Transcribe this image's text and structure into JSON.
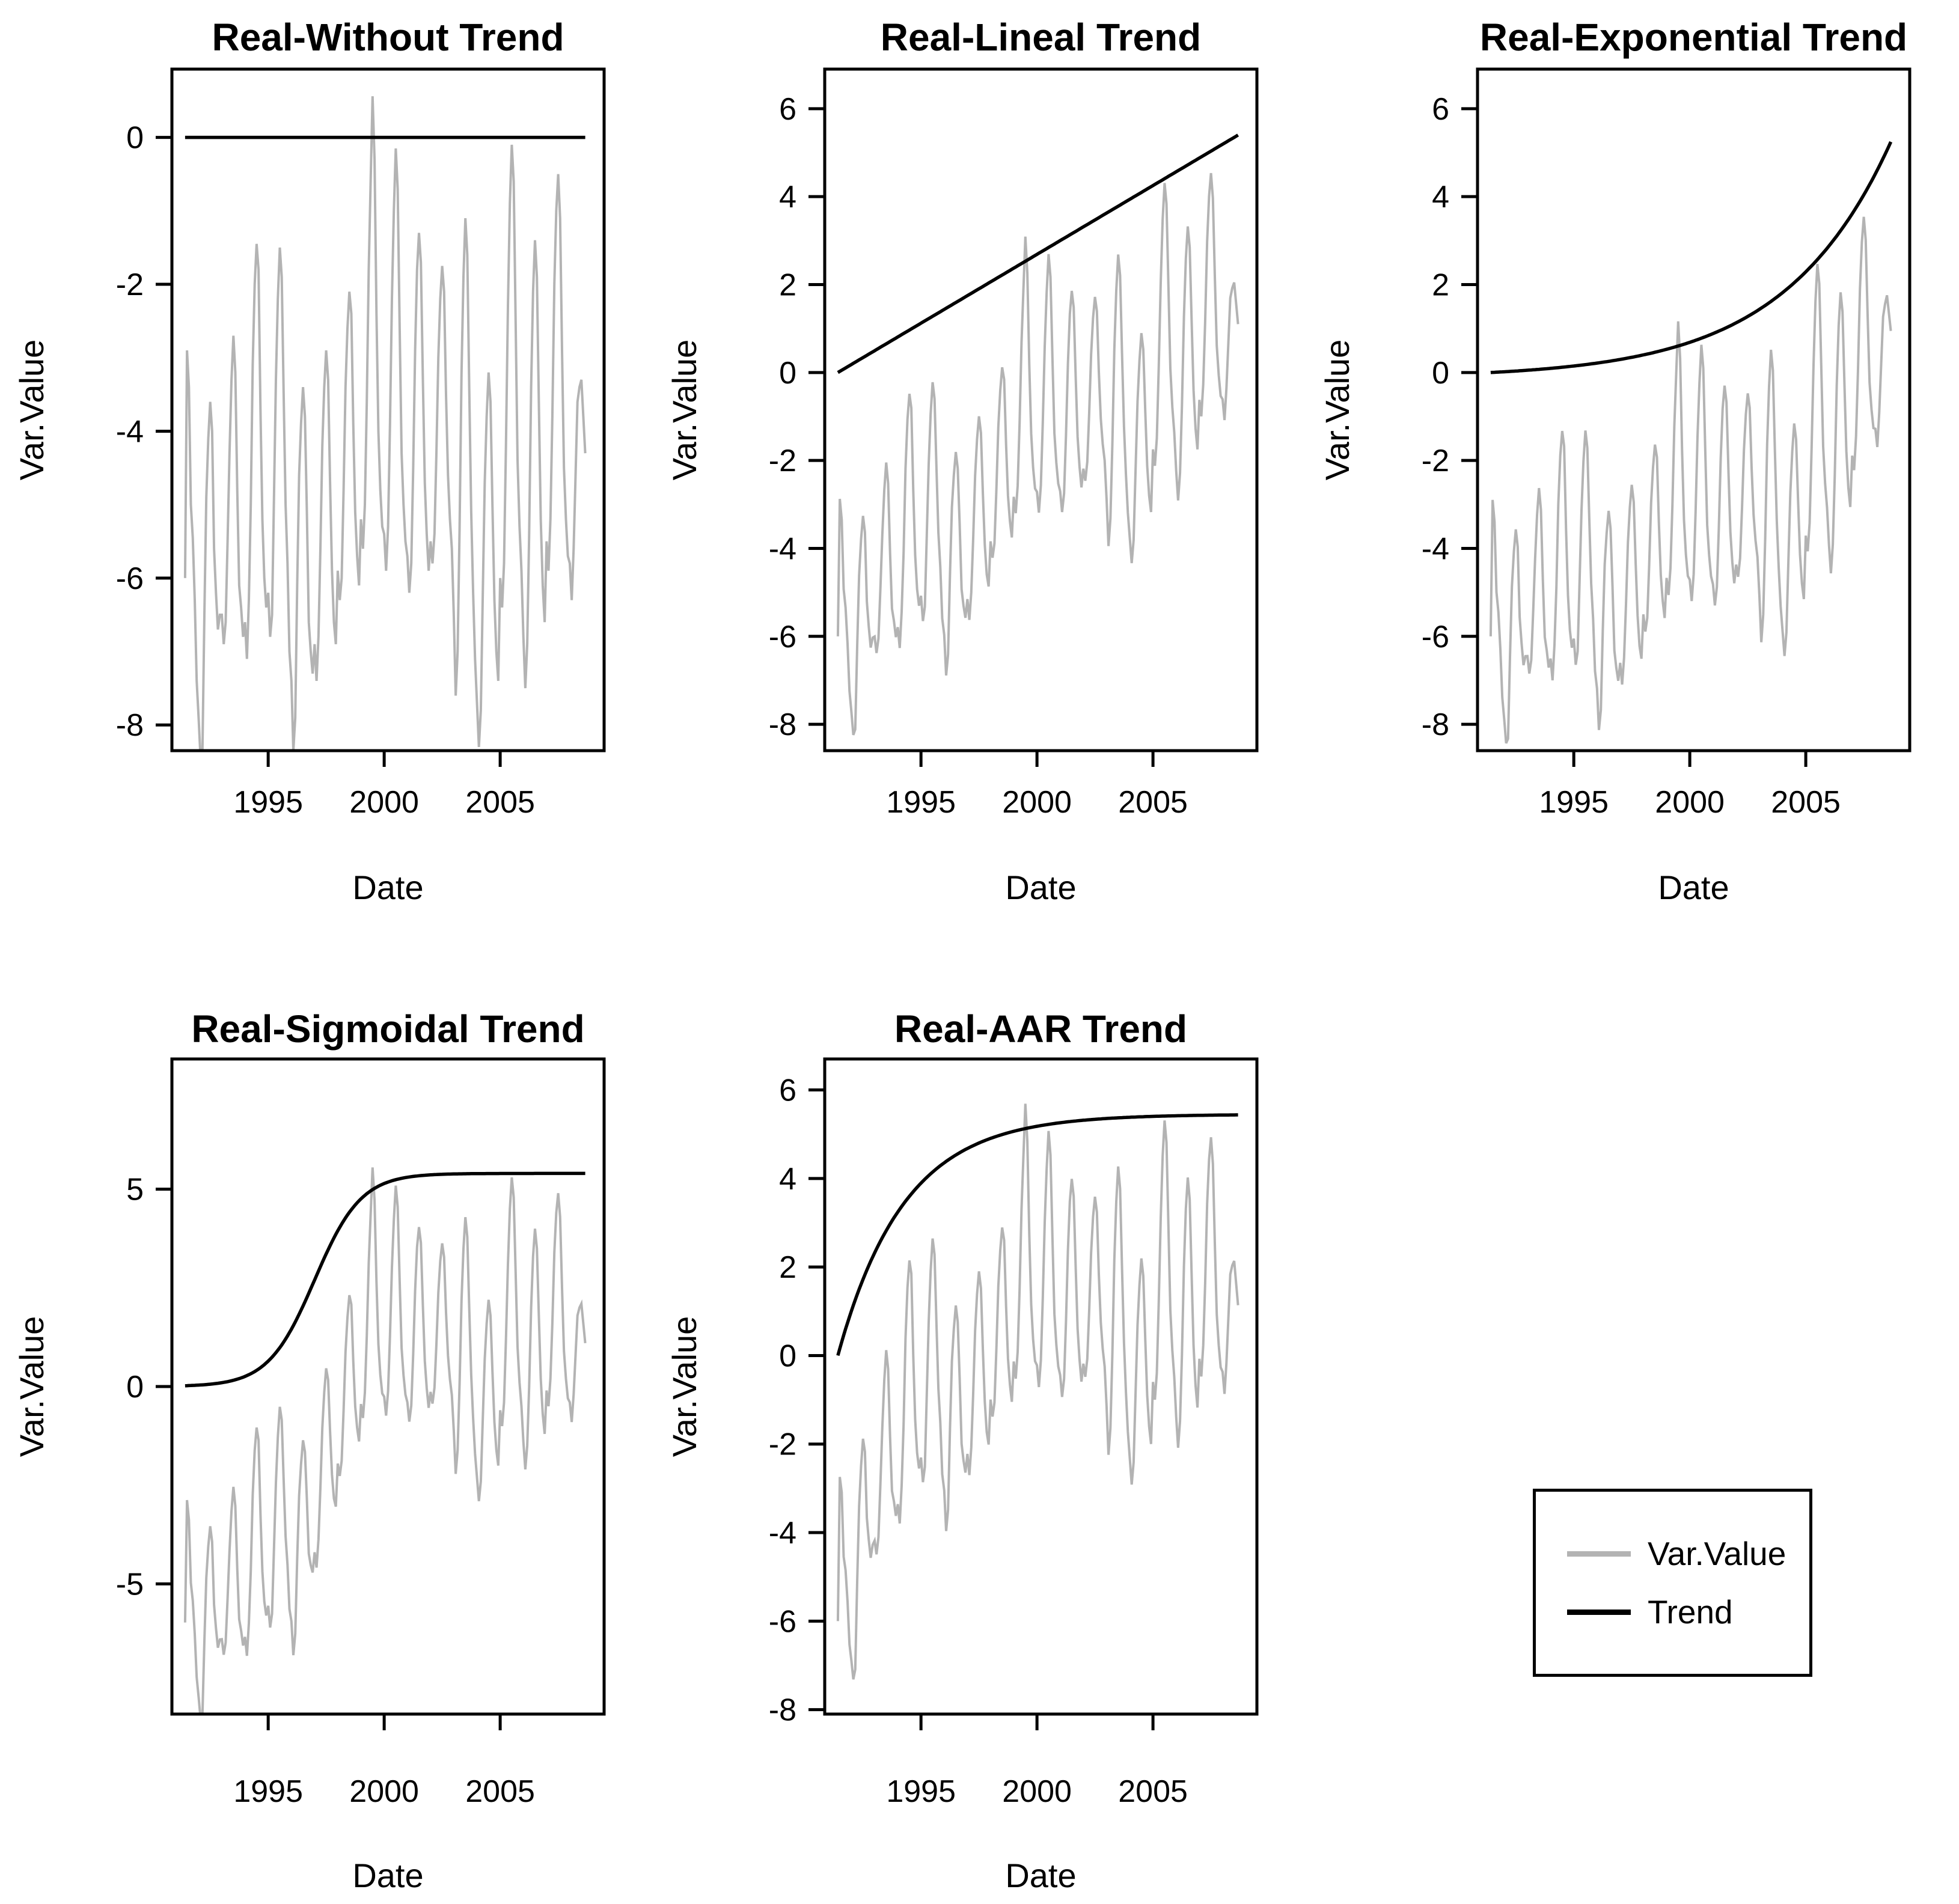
{
  "figure": {
    "background_color": "#ffffff",
    "text_color": "#000000"
  },
  "legend": {
    "entries": [
      {
        "label": "Var.Value",
        "color": "#b3b3b3"
      },
      {
        "label": "Trend",
        "color": "#000000"
      }
    ]
  },
  "chart_data": {
    "type": "line",
    "colors": {
      "series": "#b3b3b3",
      "trend": "#000000",
      "frame": "#000000",
      "text": "#000000"
    },
    "x": {
      "label": "Date",
      "start_year": 1991.4167,
      "step_years": 0.0833333,
      "n": 208,
      "xlim": [
        1990.85,
        2009.48
      ],
      "xticks": [
        1995,
        2000,
        2005
      ],
      "xtick_labels": [
        "1995",
        "2000",
        "2005"
      ]
    },
    "ylabel": "Var.Value",
    "base_series_name": "Var.Value",
    "base_values": [
      -6.0,
      -2.9,
      -3.4,
      -5.0,
      -5.45,
      -6.3,
      -7.4,
      -7.9,
      -8.45,
      -8.35,
      -6.5,
      -4.9,
      -4.1,
      -3.6,
      -4.0,
      -5.6,
      -6.2,
      -6.7,
      -6.5,
      -6.5,
      -6.9,
      -6.6,
      -5.5,
      -4.3,
      -3.3,
      -2.7,
      -3.2,
      -4.8,
      -6.1,
      -6.4,
      -6.8,
      -6.6,
      -7.1,
      -6.3,
      -5.0,
      -3.1,
      -2.0,
      -1.45,
      -1.8,
      -3.7,
      -5.2,
      -6.0,
      -6.4,
      -6.2,
      -6.8,
      -6.5,
      -4.9,
      -3.3,
      -2.2,
      -1.5,
      -1.9,
      -3.5,
      -5.0,
      -5.8,
      -7.0,
      -7.4,
      -8.35,
      -7.9,
      -6.1,
      -4.6,
      -3.9,
      -3.4,
      -3.8,
      -5.1,
      -6.6,
      -7.0,
      -7.3,
      -6.9,
      -7.4,
      -6.8,
      -5.6,
      -4.2,
      -3.4,
      -2.9,
      -3.3,
      -4.7,
      -5.9,
      -6.6,
      -6.9,
      -5.9,
      -6.3,
      -6.0,
      -4.8,
      -3.4,
      -2.6,
      -2.1,
      -2.4,
      -3.9,
      -5.1,
      -5.7,
      -6.1,
      -5.2,
      -5.6,
      -5.0,
      -3.6,
      -1.8,
      -0.6,
      0.56,
      -0.3,
      -2.4,
      -4.0,
      -4.8,
      -5.3,
      -5.4,
      -5.9,
      -5.3,
      -3.9,
      -2.2,
      -1.0,
      -0.15,
      -0.7,
      -2.6,
      -4.3,
      -5.0,
      -5.5,
      -5.7,
      -6.2,
      -5.8,
      -4.5,
      -2.9,
      -1.8,
      -1.3,
      -1.7,
      -3.3,
      -4.7,
      -5.4,
      -5.9,
      -5.5,
      -5.8,
      -5.4,
      -4.3,
      -3.0,
      -2.2,
      -1.75,
      -2.1,
      -3.5,
      -4.6,
      -5.2,
      -5.6,
      -6.5,
      -7.6,
      -7.0,
      -5.3,
      -3.2,
      -1.9,
      -1.1,
      -1.6,
      -3.4,
      -5.1,
      -6.2,
      -7.1,
      -7.7,
      -8.3,
      -7.8,
      -6.2,
      -4.7,
      -3.8,
      -3.2,
      -3.6,
      -5.0,
      -6.3,
      -7.0,
      -7.4,
      -6.0,
      -6.4,
      -5.8,
      -4.2,
      -2.3,
      -0.9,
      -0.1,
      -0.6,
      -2.5,
      -4.4,
      -5.3,
      -5.9,
      -6.8,
      -7.5,
      -6.9,
      -5.4,
      -3.4,
      -2.1,
      -1.4,
      -1.9,
      -3.6,
      -5.2,
      -6.1,
      -6.6,
      -5.5,
      -5.9,
      -5.2,
      -3.8,
      -2.0,
      -1.0,
      -0.5,
      -1.1,
      -2.9,
      -4.5,
      -5.2,
      -5.7,
      -5.8,
      -6.3,
      -5.6,
      -4.6,
      -3.6,
      -3.4,
      -3.3,
      -3.8,
      -4.3
    ],
    "series_rule": "panel gray series = base_values + trend(t); black line = trend(t)",
    "panels": [
      {
        "id": "without",
        "title": "Real-Without Trend",
        "xlabel": "Date",
        "ylabel": "Var.Value",
        "ylim": [
          -8.35,
          0.93
        ],
        "yticks": [
          0,
          -2,
          -4,
          -6,
          -8
        ],
        "trend": {
          "type": "constant",
          "value": 0
        }
      },
      {
        "id": "lineal",
        "title": "Real-Lineal Trend",
        "xlabel": "Date",
        "ylabel": "Var.Value",
        "ylim": [
          -8.6,
          6.9
        ],
        "yticks": [
          6,
          4,
          2,
          0,
          -2,
          -4,
          -6,
          -8
        ],
        "trend": {
          "type": "linear",
          "start": 0,
          "end": 5.4
        }
      },
      {
        "id": "exponential",
        "title": "Real-Exponential Trend",
        "xlabel": "Date",
        "ylabel": "Var.Value",
        "ylim": [
          -8.6,
          6.9
        ],
        "yticks": [
          6,
          4,
          2,
          0,
          -2,
          -4,
          -6,
          -8
        ],
        "trend": {
          "type": "exponential",
          "scale": 0.125,
          "rate": 0.218,
          "end_value": 5.25
        }
      },
      {
        "id": "sigmoidal",
        "title": "Real-Sigmoidal Trend",
        "xlabel": "Date",
        "ylabel": "Var.Value",
        "ylim": [
          -8.3,
          8.3
        ],
        "yticks": [
          5,
          0,
          -5
        ],
        "trend": {
          "type": "sigmoid",
          "max": 5.4,
          "midpoint_year": 1997.0,
          "rate": 1.0
        }
      },
      {
        "id": "aar",
        "title": "Real-AAR Trend",
        "xlabel": "Date",
        "ylabel": "Var.Value",
        "ylim": [
          -8.1,
          6.7
        ],
        "yticks": [
          6,
          4,
          2,
          0,
          -2,
          -4,
          -6,
          -8
        ],
        "trend": {
          "type": "asymptotic",
          "max": 5.45,
          "rate": 0.35
        }
      }
    ]
  }
}
